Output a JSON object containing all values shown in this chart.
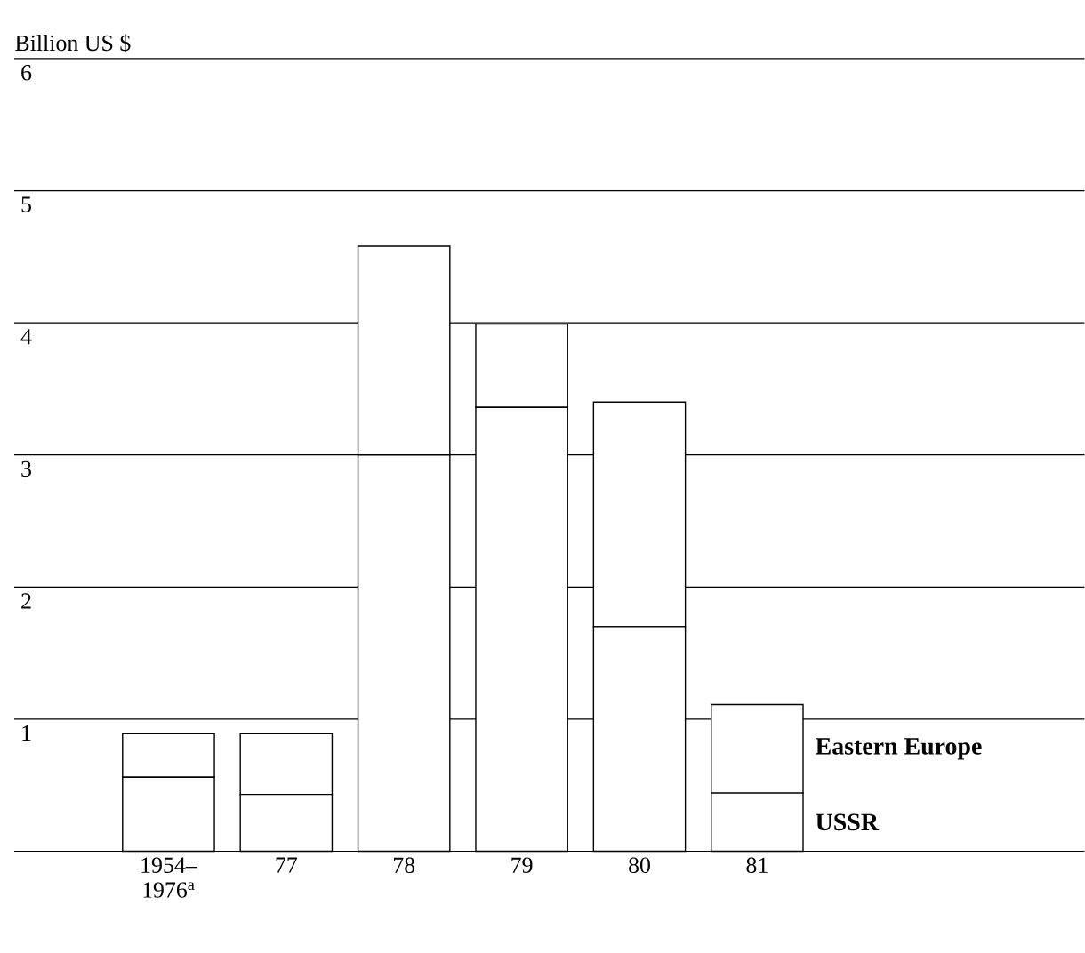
{
  "chart_data": {
    "type": "bar",
    "stacked": true,
    "ylabel": "Billion US $",
    "categories": [
      "1954– 1976$^{a}$",
      "77",
      "78",
      "79",
      "80",
      "81"
    ],
    "series": [
      {
        "name": "USSR",
        "color": "#ffffff",
        "values": [
          0.56,
          0.43,
          3.0,
          3.36,
          1.7,
          0.44
        ]
      },
      {
        "name": "Eastern Europe",
        "color": "#ffffff",
        "values": [
          0.33,
          0.46,
          1.58,
          0.63,
          1.7,
          0.67
        ]
      }
    ],
    "ylim": [
      0,
      6
    ],
    "yticks": [
      {
        "value": 0,
        "label": null
      },
      1,
      2,
      3,
      4,
      5,
      6
    ],
    "grid": "y",
    "legend": false
  }
}
